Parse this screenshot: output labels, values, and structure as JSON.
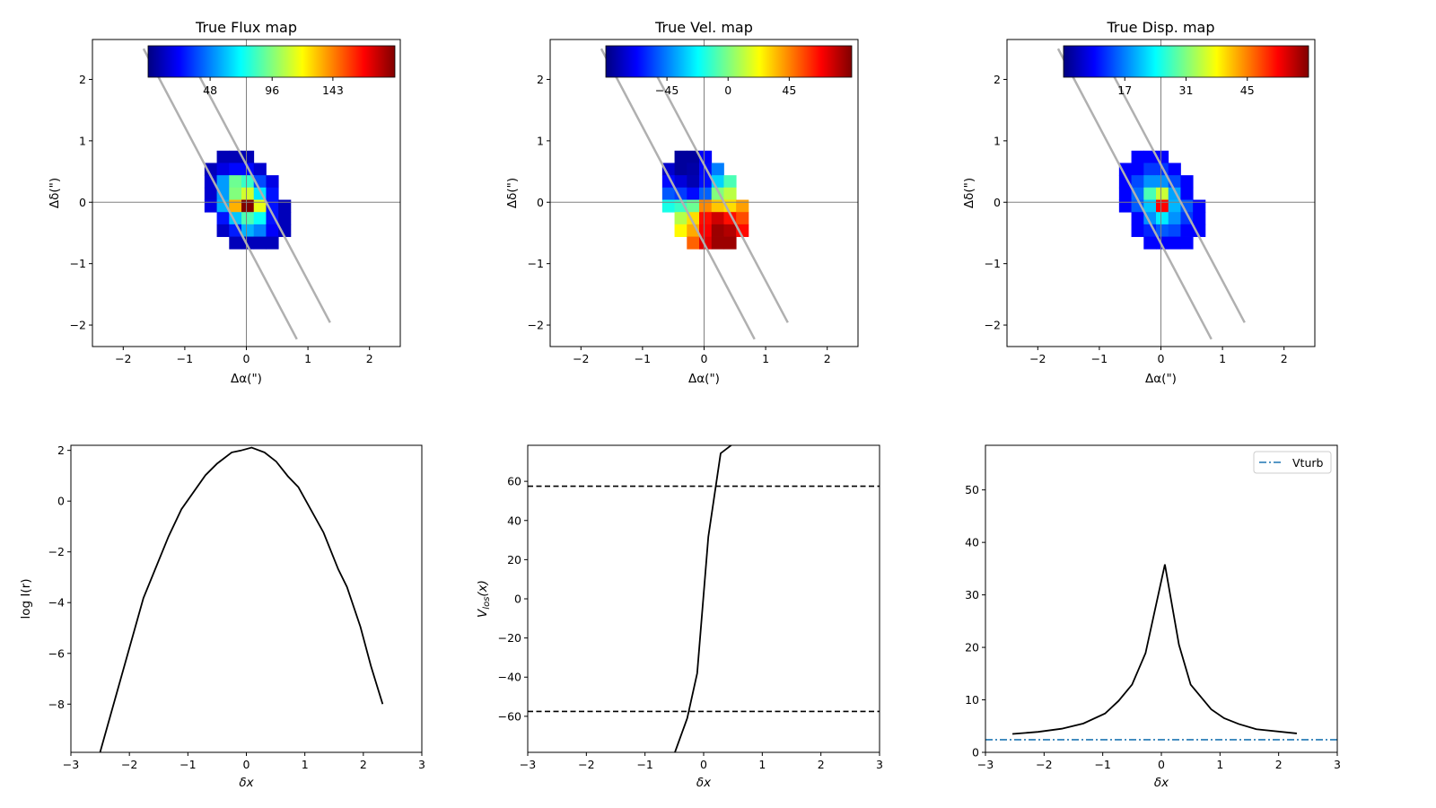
{
  "chart_data": [
    {
      "type": "heatmap",
      "title": "True Flux map",
      "xlabel": "Δα(\")",
      "ylabel": "Δδ(\")",
      "xlim": [
        -2.5,
        2.5
      ],
      "ylim": [
        -2.35,
        2.65
      ],
      "xticks": [
        -2,
        -1,
        0,
        1,
        2
      ],
      "yticks": [
        -2,
        -1,
        0,
        1,
        2
      ],
      "x0": -0.68,
      "y0": 0.84,
      "pixel_size": 0.2,
      "colorbar": {
        "range": [
          0,
          191
        ],
        "ticks": [
          48,
          96,
          143
        ],
        "cmap": "jet"
      },
      "values": [
        [
          null,
          10,
          10,
          10,
          null,
          null,
          null
        ],
        [
          11,
          19,
          25,
          25,
          15,
          null,
          null
        ],
        [
          15,
          53,
          92,
          82,
          38,
          19,
          null
        ],
        [
          15,
          53,
          96,
          111,
          67,
          27,
          null
        ],
        [
          19,
          57,
          134,
          191,
          115,
          27,
          11
        ],
        [
          null,
          27,
          61,
          86,
          73,
          27,
          11
        ],
        [
          null,
          13,
          29,
          57,
          48,
          23,
          11
        ],
        [
          null,
          null,
          11,
          11,
          11,
          11,
          null
        ]
      ],
      "slits": [
        [
          [
            -1.67,
            2.5
          ],
          [
            0.82,
            -2.23
          ]
        ],
        [
          [
            -1.0,
            2.5
          ],
          [
            1.36,
            -1.96
          ]
        ]
      ]
    },
    {
      "type": "heatmap",
      "title": "True Vel. map",
      "xlabel": "Δα(\")",
      "ylabel": "Δδ(\")",
      "xlim": [
        -2.5,
        2.5
      ],
      "ylim": [
        -2.35,
        2.65
      ],
      "xticks": [
        -2,
        -1,
        0,
        1,
        2
      ],
      "yticks": [
        -2,
        -1,
        0,
        1,
        2
      ],
      "x0": -0.68,
      "y0": 0.84,
      "pixel_size": 0.2,
      "colorbar": {
        "range": [
          -90,
          91
        ],
        "ticks": [
          -45,
          0,
          45
        ],
        "tick_labels": [
          "−45",
          "0",
          "45"
        ],
        "cmap": "jet"
      },
      "values": [
        [
          null,
          -85,
          -85,
          -68,
          null,
          null,
          null
        ],
        [
          -76,
          -85,
          -83,
          -66,
          -45,
          null,
          null
        ],
        [
          -66,
          -74,
          -81,
          -65,
          -30,
          -9,
          null
        ],
        [
          -52,
          -57,
          -66,
          -50,
          1,
          11,
          null
        ],
        [
          -18,
          -12,
          -3,
          44,
          33,
          29,
          40
        ],
        [
          null,
          10,
          29,
          66,
          77,
          66,
          55
        ],
        [
          null,
          24,
          38,
          69,
          86,
          82,
          67
        ],
        [
          null,
          null,
          51,
          73,
          86,
          86,
          null
        ]
      ],
      "slits": [
        [
          [
            -1.67,
            2.5
          ],
          [
            0.82,
            -2.23
          ]
        ],
        [
          [
            -1.0,
            2.5
          ],
          [
            1.36,
            -1.96
          ]
        ]
      ]
    },
    {
      "type": "heatmap",
      "title": "True Disp. map",
      "xlabel": "Δα(\")",
      "ylabel": "Δδ(\")",
      "xlim": [
        -2.5,
        2.5
      ],
      "ylim": [
        -2.35,
        2.65
      ],
      "xticks": [
        -2,
        -1,
        0,
        1,
        2
      ],
      "yticks": [
        -2,
        -1,
        0,
        1,
        2
      ],
      "x0": -0.68,
      "y0": 0.84,
      "pixel_size": 0.2,
      "colorbar": {
        "range": [
          3,
          59
        ],
        "ticks": [
          17,
          31,
          45
        ],
        "cmap": "jet"
      },
      "values": [
        [
          null,
          10,
          10,
          10,
          null,
          null,
          null
        ],
        [
          10,
          10,
          13,
          13,
          10,
          null,
          null
        ],
        [
          10,
          14,
          18,
          18,
          14,
          10,
          null
        ],
        [
          10,
          16,
          28,
          35,
          19,
          10,
          null
        ],
        [
          10,
          15,
          21,
          52,
          20,
          15,
          10
        ],
        [
          null,
          10,
          18,
          23,
          18,
          13,
          10
        ],
        [
          null,
          10,
          12,
          15,
          14,
          10,
          10
        ],
        [
          null,
          null,
          10,
          10,
          10,
          10,
          null
        ]
      ],
      "slits": [
        [
          [
            -1.67,
            2.5
          ],
          [
            0.82,
            -2.23
          ]
        ],
        [
          [
            -1.0,
            2.5
          ],
          [
            1.36,
            -1.96
          ]
        ]
      ]
    },
    {
      "type": "line",
      "title": "",
      "xlabel": "δx",
      "ylabel": "log I(r)",
      "xlim": [
        -3,
        3
      ],
      "ylim": [
        -9.9,
        2.2
      ],
      "xticks": [
        -3,
        -2,
        -1,
        0,
        1,
        2,
        3
      ],
      "yticks": [
        2,
        0,
        -2,
        -4,
        -6,
        -8
      ],
      "series": [
        {
          "name": "profile",
          "color": "#000000",
          "x": [
            -2.55,
            -1.76,
            -1.33,
            -1.11,
            -0.7,
            -0.5,
            -0.25,
            -0.1,
            0.09,
            0.31,
            0.51,
            0.71,
            0.89,
            1.32,
            1.57,
            1.72,
            1.95,
            2.13,
            2.33
          ],
          "y": [
            -10.3,
            -3.82,
            -1.39,
            -0.32,
            1.02,
            1.48,
            1.92,
            1.99,
            2.11,
            1.92,
            1.56,
            0.98,
            0.55,
            -1.24,
            -2.68,
            -3.38,
            -4.95,
            -6.5,
            -8.0
          ]
        }
      ]
    },
    {
      "type": "line",
      "title": "",
      "xlabel": "δx",
      "ylabel": "V",
      "ylabel_sub": "los",
      "ylabel_tail": "(x)",
      "xlim": [
        -3,
        3
      ],
      "ylim": [
        -78.4,
        78.4
      ],
      "xticks": [
        -3,
        -2,
        -1,
        0,
        1,
        2,
        3
      ],
      "yticks": [
        60,
        40,
        20,
        0,
        -20,
        -40,
        -60
      ],
      "hlines": [
        57.5,
        -57.5
      ],
      "series": [
        {
          "name": "velocity",
          "color": "#000000",
          "x": [
            -0.55,
            -0.49,
            -0.28,
            -0.11,
            0.08,
            0.29,
            0.47,
            0.7
          ],
          "y": [
            -90,
            -78.4,
            -61,
            -38,
            31.7,
            74.3,
            78.4,
            85
          ]
        }
      ]
    },
    {
      "type": "line",
      "title": "",
      "xlabel": "δx",
      "ylabel": "",
      "xlim": [
        -3,
        3
      ],
      "ylim": [
        0,
        58.5
      ],
      "xticks": [
        -3,
        -2,
        -1,
        0,
        1,
        2,
        3
      ],
      "yticks": [
        0,
        10,
        20,
        30,
        40,
        50
      ],
      "legend": {
        "placement": "top-right",
        "entries": [
          "Vturb"
        ]
      },
      "vturb": {
        "value": 2.4,
        "color": "#1f77b4"
      },
      "series": [
        {
          "name": "dispersion",
          "color": "#000000",
          "x": [
            -2.54,
            -2.1,
            -1.7,
            -1.33,
            -0.96,
            -0.73,
            -0.5,
            -0.27,
            0.06,
            0.3,
            0.5,
            0.85,
            1.07,
            1.32,
            1.62,
            2.31
          ],
          "y": [
            3.5,
            3.9,
            4.5,
            5.5,
            7.4,
            9.8,
            12.9,
            18.9,
            35.8,
            20.5,
            12.9,
            8.2,
            6.5,
            5.4,
            4.4,
            3.6
          ]
        }
      ]
    }
  ]
}
